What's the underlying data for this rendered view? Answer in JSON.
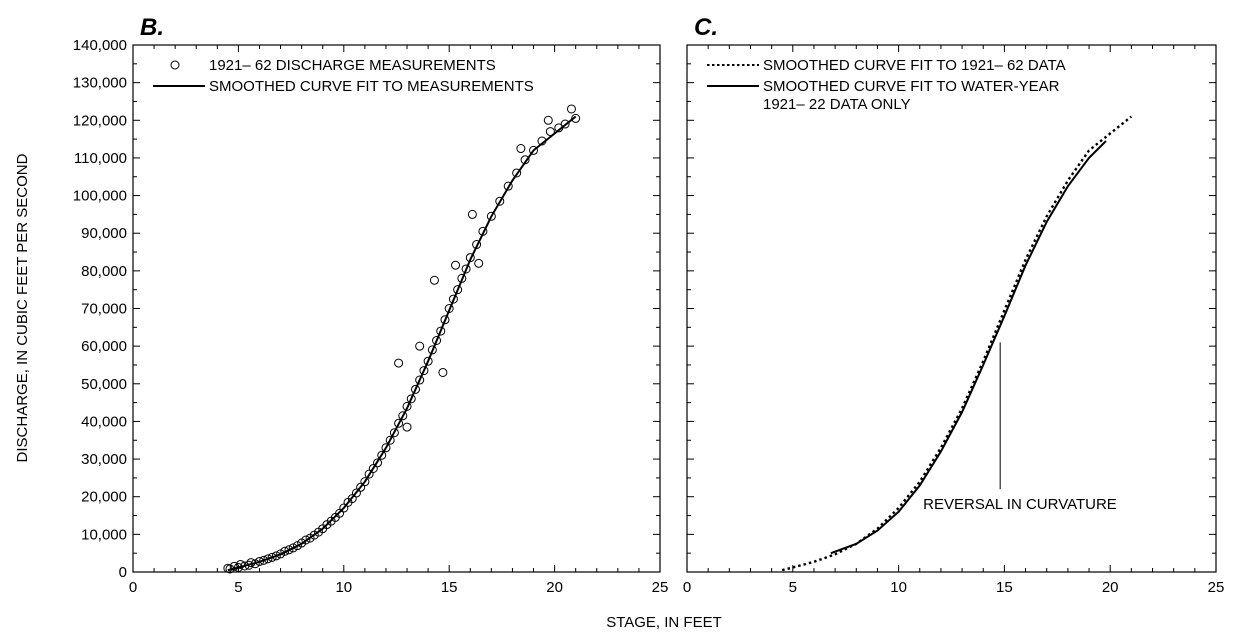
{
  "figure": {
    "xlabel": "STAGE, IN FEET",
    "ylabel": "DISCHARGE, IN CUBIC FEET PER SECOND"
  },
  "chart_data": [
    {
      "panel": "B.",
      "type": "scatter",
      "xlim": [
        0,
        25
      ],
      "ylim": [
        0,
        140000
      ],
      "xticks": [
        "0",
        "5",
        "10",
        "15",
        "20",
        "25"
      ],
      "yticks": [
        "0",
        "10,000",
        "20,000",
        "30,000",
        "40,000",
        "50,000",
        "60,000",
        "70,000",
        "80,000",
        "90,000",
        "100,000",
        "110,000",
        "120,000",
        "130,000",
        "140,000"
      ],
      "legend_position": "top-left",
      "series": [
        {
          "name": "1921– 62 DISCHARGE MEASUREMENTS",
          "kind": "scatter",
          "marker": "open-circle",
          "color": "#000000",
          "points": [
            [
              4.5,
              1000
            ],
            [
              4.6,
              800
            ],
            [
              4.8,
              1500
            ],
            [
              5.0,
              1200
            ],
            [
              5.1,
              2000
            ],
            [
              5.3,
              1600
            ],
            [
              5.5,
              1800
            ],
            [
              5.6,
              2500
            ],
            [
              5.8,
              2200
            ],
            [
              6.0,
              2800
            ],
            [
              6.2,
              3100
            ],
            [
              6.4,
              3500
            ],
            [
              6.6,
              3900
            ],
            [
              6.8,
              4300
            ],
            [
              7.0,
              4800
            ],
            [
              7.2,
              5500
            ],
            [
              7.4,
              5900
            ],
            [
              7.6,
              6400
            ],
            [
              7.8,
              7000
            ],
            [
              8.0,
              7700
            ],
            [
              8.2,
              8500
            ],
            [
              8.4,
              9000
            ],
            [
              8.6,
              9800
            ],
            [
              8.8,
              10600
            ],
            [
              9.0,
              11500
            ],
            [
              9.2,
              12600
            ],
            [
              9.4,
              13500
            ],
            [
              9.6,
              14500
            ],
            [
              9.8,
              15600
            ],
            [
              10.0,
              17000
            ],
            [
              10.2,
              18500
            ],
            [
              10.4,
              19500
            ],
            [
              10.6,
              21000
            ],
            [
              10.8,
              22500
            ],
            [
              11.0,
              24000
            ],
            [
              11.2,
              26000
            ],
            [
              11.4,
              27500
            ],
            [
              11.6,
              29000
            ],
            [
              11.8,
              31000
            ],
            [
              12.0,
              33000
            ],
            [
              12.2,
              35000
            ],
            [
              12.4,
              37000
            ],
            [
              12.6,
              39500
            ],
            [
              12.8,
              41500
            ],
            [
              13.0,
              44000
            ],
            [
              13.2,
              46000
            ],
            [
              13.4,
              48500
            ],
            [
              13.6,
              51000
            ],
            [
              13.8,
              53500
            ],
            [
              14.0,
              56000
            ],
            [
              14.2,
              59000
            ],
            [
              14.4,
              61500
            ],
            [
              14.6,
              64000
            ],
            [
              14.8,
              67000
            ],
            [
              15.0,
              70000
            ],
            [
              15.2,
              72500
            ],
            [
              15.4,
              75000
            ],
            [
              15.6,
              78000
            ],
            [
              15.8,
              80500
            ],
            [
              16.0,
              83500
            ],
            [
              16.3,
              87000
            ],
            [
              16.6,
              90500
            ],
            [
              17.0,
              94500
            ],
            [
              17.4,
              98500
            ],
            [
              17.8,
              102500
            ],
            [
              18.2,
              106000
            ],
            [
              18.6,
              109500
            ],
            [
              19.0,
              112000
            ],
            [
              19.4,
              114500
            ],
            [
              19.8,
              117000
            ],
            [
              20.2,
              118000
            ],
            [
              20.5,
              119000
            ],
            [
              20.8,
              123000
            ],
            [
              21.0,
              120500
            ],
            [
              12.6,
              55500
            ],
            [
              13.6,
              60000
            ],
            [
              14.3,
              77500
            ],
            [
              15.3,
              81500
            ],
            [
              16.1,
              95000
            ],
            [
              14.7,
              53000
            ],
            [
              13.0,
              38500
            ],
            [
              16.4,
              82000
            ],
            [
              18.4,
              112500
            ],
            [
              19.7,
              120000
            ]
          ]
        },
        {
          "name": "SMOOTHED CURVE FIT TO MEASUREMENTS",
          "kind": "line",
          "style": "solid",
          "color": "#000000",
          "x": [
            4.5,
            5,
            6,
            7,
            8,
            9,
            10,
            11,
            12,
            13,
            14,
            15,
            16,
            17,
            18,
            19,
            20,
            21
          ],
          "y": [
            500,
            1200,
            2700,
            4700,
            7500,
            11500,
            17000,
            24000,
            33000,
            43500,
            56000,
            69500,
            83000,
            94500,
            104000,
            112000,
            116500,
            121000
          ]
        }
      ]
    },
    {
      "panel": "C.",
      "type": "line",
      "xlim": [
        0,
        25
      ],
      "ylim": [
        0,
        140000
      ],
      "xticks": [
        "0",
        "5",
        "10",
        "15",
        "20",
        "25"
      ],
      "legend_position": "top-left",
      "series": [
        {
          "name": "SMOOTHED CURVE FIT TO 1921– 62 DATA",
          "style": "dotted",
          "color": "#000000",
          "x": [
            4.5,
            5,
            6,
            7,
            8,
            9,
            10,
            11,
            12,
            13,
            14,
            15,
            16,
            17,
            18,
            19,
            20,
            21
          ],
          "y": [
            500,
            1200,
            2700,
            4700,
            7500,
            11500,
            17000,
            24000,
            33000,
            43500,
            56000,
            69500,
            83000,
            94500,
            104000,
            112000,
            116500,
            121000
          ]
        },
        {
          "name": "SMOOTHED CURVE FIT TO WATER-YEAR 1921– 22 DATA ONLY",
          "legend_lines": [
            "SMOOTHED CURVE FIT TO WATER-YEAR",
            "1921– 22 DATA ONLY"
          ],
          "style": "solid",
          "color": "#000000",
          "x": [
            6.8,
            8,
            9,
            10,
            11,
            12,
            13,
            14,
            15,
            16,
            17,
            18,
            19,
            19.8
          ],
          "y": [
            5000,
            7500,
            11000,
            16000,
            23000,
            32000,
            42500,
            55000,
            68000,
            81500,
            93000,
            102500,
            110000,
            114500
          ]
        }
      ],
      "annotations": [
        {
          "text": "REVERSAL IN CURVATURE",
          "x": 14.8,
          "y": 61000,
          "line_to_y": 22000
        }
      ]
    }
  ]
}
